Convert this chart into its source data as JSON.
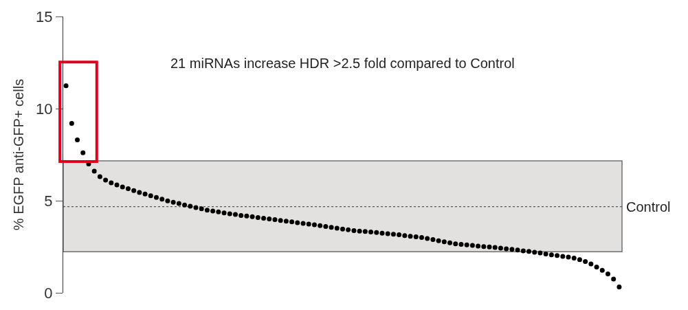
{
  "chart_data": {
    "type": "scatter",
    "ylabel": "% EGFP anti-GFP+ cells",
    "annotations": [
      "21 miRNAs increase HDR >2.5 fold compared to Control"
    ],
    "categories": [
      null,
      null,
      null,
      null,
      null,
      null,
      null,
      null,
      null,
      null,
      null,
      null,
      null,
      null,
      null,
      null,
      null,
      null,
      null,
      null,
      null,
      null,
      null,
      null,
      null,
      null,
      null,
      null,
      null,
      null,
      null,
      null,
      null,
      null,
      null,
      null,
      null,
      null,
      null,
      null,
      null,
      null,
      null,
      null,
      null,
      null,
      null,
      null,
      null,
      null,
      null,
      null,
      null,
      null,
      null,
      null,
      null,
      null,
      null,
      null,
      null,
      null,
      null,
      null,
      null,
      null,
      null,
      null,
      null,
      null,
      null,
      null,
      null,
      null,
      null,
      null,
      null,
      null,
      null,
      null,
      null,
      null,
      null,
      null,
      null,
      null,
      null,
      null,
      null,
      null,
      null,
      null,
      null,
      null,
      null,
      null,
      null,
      null,
      null
    ],
    "series": [
      {
        "color": "#000000",
        "values": [
          11.24,
          9.2,
          8.3,
          7.6,
          7.0,
          6.6,
          6.31,
          6.12,
          5.97,
          5.86,
          5.75,
          5.65,
          5.55,
          5.45,
          5.36,
          5.27,
          5.18,
          5.08,
          4.99,
          4.92,
          4.85,
          4.77,
          4.7,
          4.63,
          4.56,
          4.49,
          4.44,
          4.39,
          4.34,
          4.29,
          4.25,
          4.2,
          4.17,
          4.13,
          4.09,
          4.05,
          4.01,
          3.97,
          3.93,
          3.89,
          3.85,
          3.81,
          3.77,
          3.73,
          3.69,
          3.65,
          3.6,
          3.55,
          3.51,
          3.46,
          3.42,
          3.38,
          3.35,
          3.33,
          3.3,
          3.27,
          3.24,
          3.21,
          3.18,
          3.15,
          3.11,
          3.07,
          3.04,
          3.0,
          2.95,
          2.89,
          2.83,
          2.77,
          2.71,
          2.66,
          2.63,
          2.6,
          2.57,
          2.54,
          2.51,
          2.49,
          2.46,
          2.43,
          2.39,
          2.36,
          2.32,
          2.28,
          2.25,
          2.2,
          2.16,
          2.11,
          2.06,
          2.02,
          1.98,
          1.94,
          1.88,
          1.8,
          1.7,
          1.57,
          1.4,
          1.22,
          1.03,
          0.75,
          0.32
        ]
      }
    ],
    "ylim": [
      0,
      15
    ],
    "yticks": [
      0,
      5,
      10,
      15
    ],
    "ref_lines": [
      {
        "axis": "y",
        "value": 4.68,
        "label": "Control",
        "color": "#555555",
        "line_style": "dotted"
      }
    ],
    "bands": [
      {
        "axis": "y",
        "from": 2.23,
        "to": 7.16,
        "color": "#e2e1e0"
      }
    ],
    "marker": "circle",
    "grid": false,
    "tick_labels": "y"
  }
}
